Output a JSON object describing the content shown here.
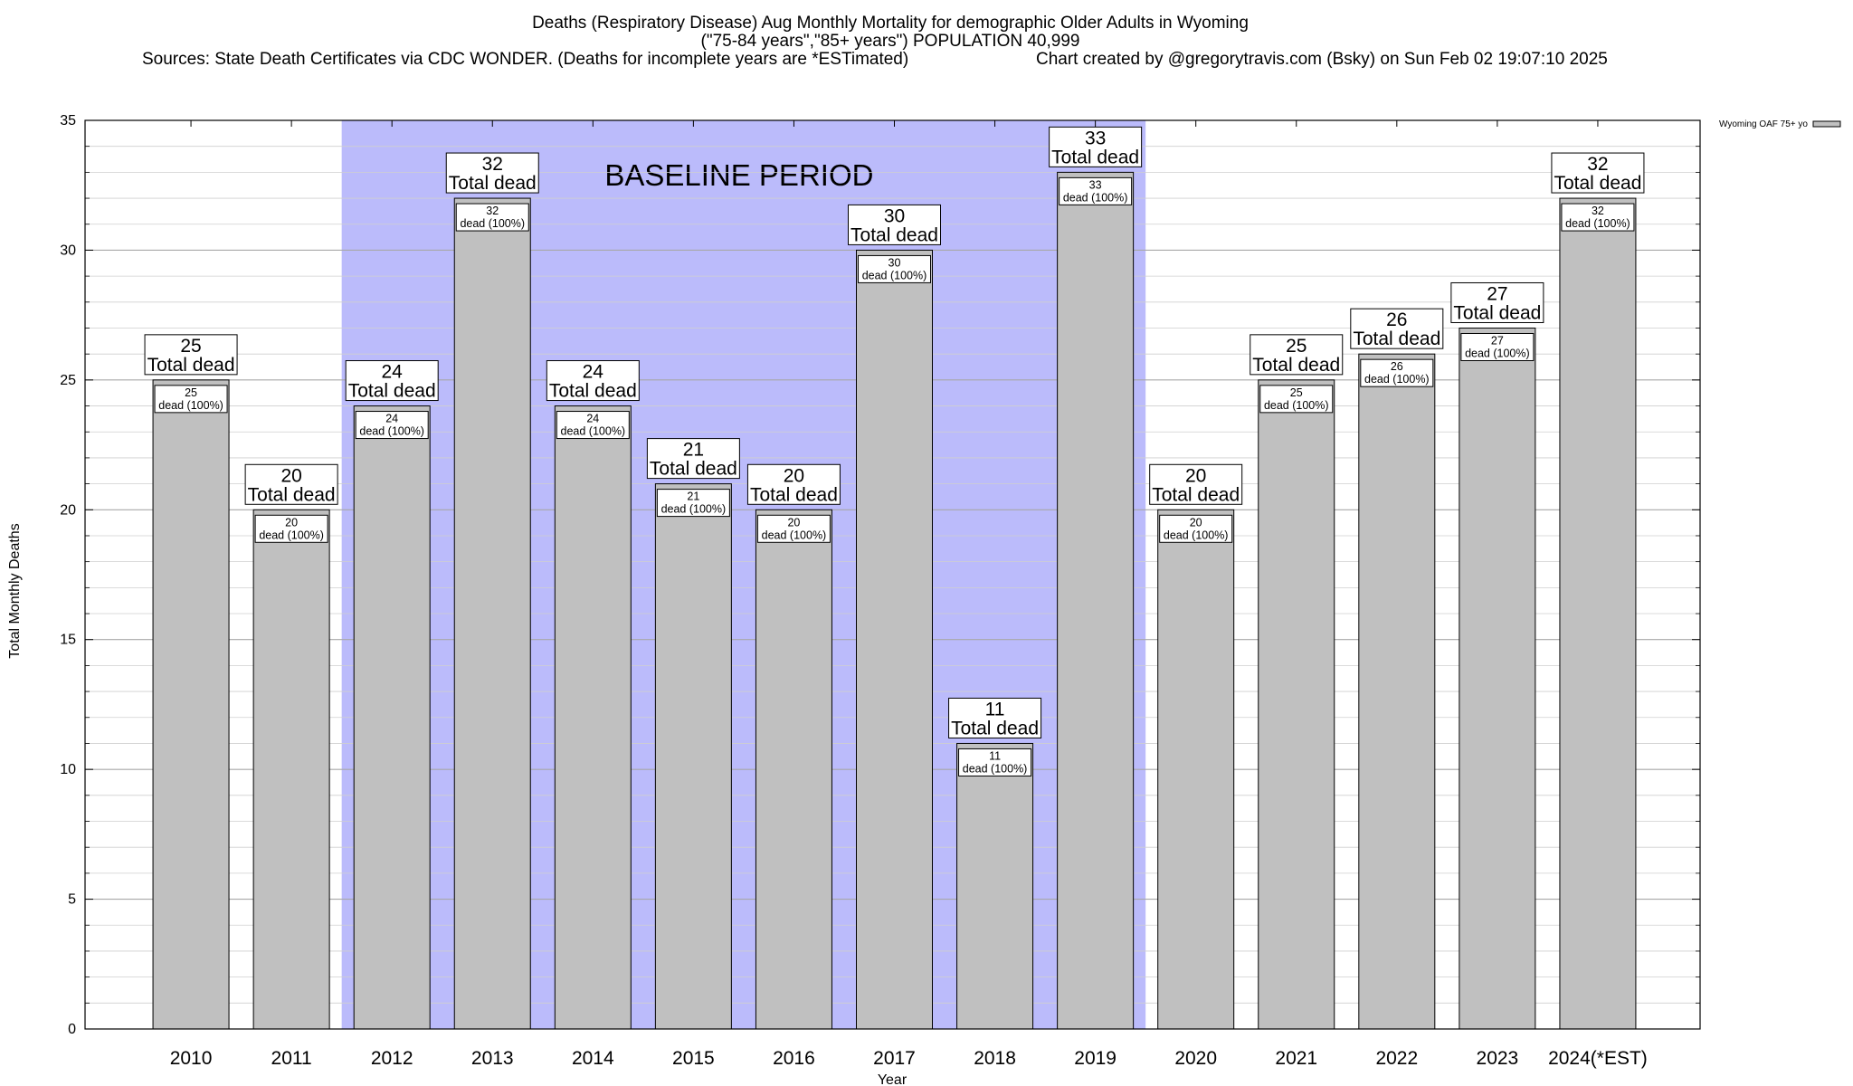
{
  "header": {
    "title_line1": "Deaths (Respiratory Disease) Aug Monthly Mortality for demographic Older Adults in Wyoming",
    "title_line2": "(\"75-84 years\",\"85+ years\") POPULATION 40,999",
    "sources": "Sources: State Death Certificates via CDC WONDER. (Deaths for incomplete years are *ESTimated)",
    "credit": "Chart created by @gregorytravis.com (Bsky) on Sun Feb 02 19:07:10 2025"
  },
  "chart_data": {
    "type": "bar",
    "xlabel": "Year",
    "ylabel": "Total Monthly Deaths",
    "ylim": [
      0,
      35
    ],
    "yticks": [
      0,
      5,
      10,
      15,
      20,
      25,
      30,
      35
    ],
    "minor_grid_step": 1,
    "grid": true,
    "legend_position": "top-right",
    "categories": [
      "2010",
      "2011",
      "2012",
      "2013",
      "2014",
      "2015",
      "2016",
      "2017",
      "2018",
      "2019",
      "2020",
      "2021",
      "2022",
      "2023",
      "2024(*EST)"
    ],
    "series": [
      {
        "name": "Wyoming OAF 75+ yo",
        "color": "#c0c0c0",
        "values": [
          25,
          20,
          24,
          32,
          24,
          21,
          20,
          30,
          11,
          33,
          20,
          25,
          26,
          27,
          32
        ]
      }
    ],
    "total_label_suffix": "Total dead",
    "inner_label_suffix": "dead (100%)",
    "annotations": [
      {
        "text": "BASELINE PERIOD",
        "from_category": "2012",
        "to_category": "2019",
        "color": "#bbbbfb"
      }
    ]
  }
}
